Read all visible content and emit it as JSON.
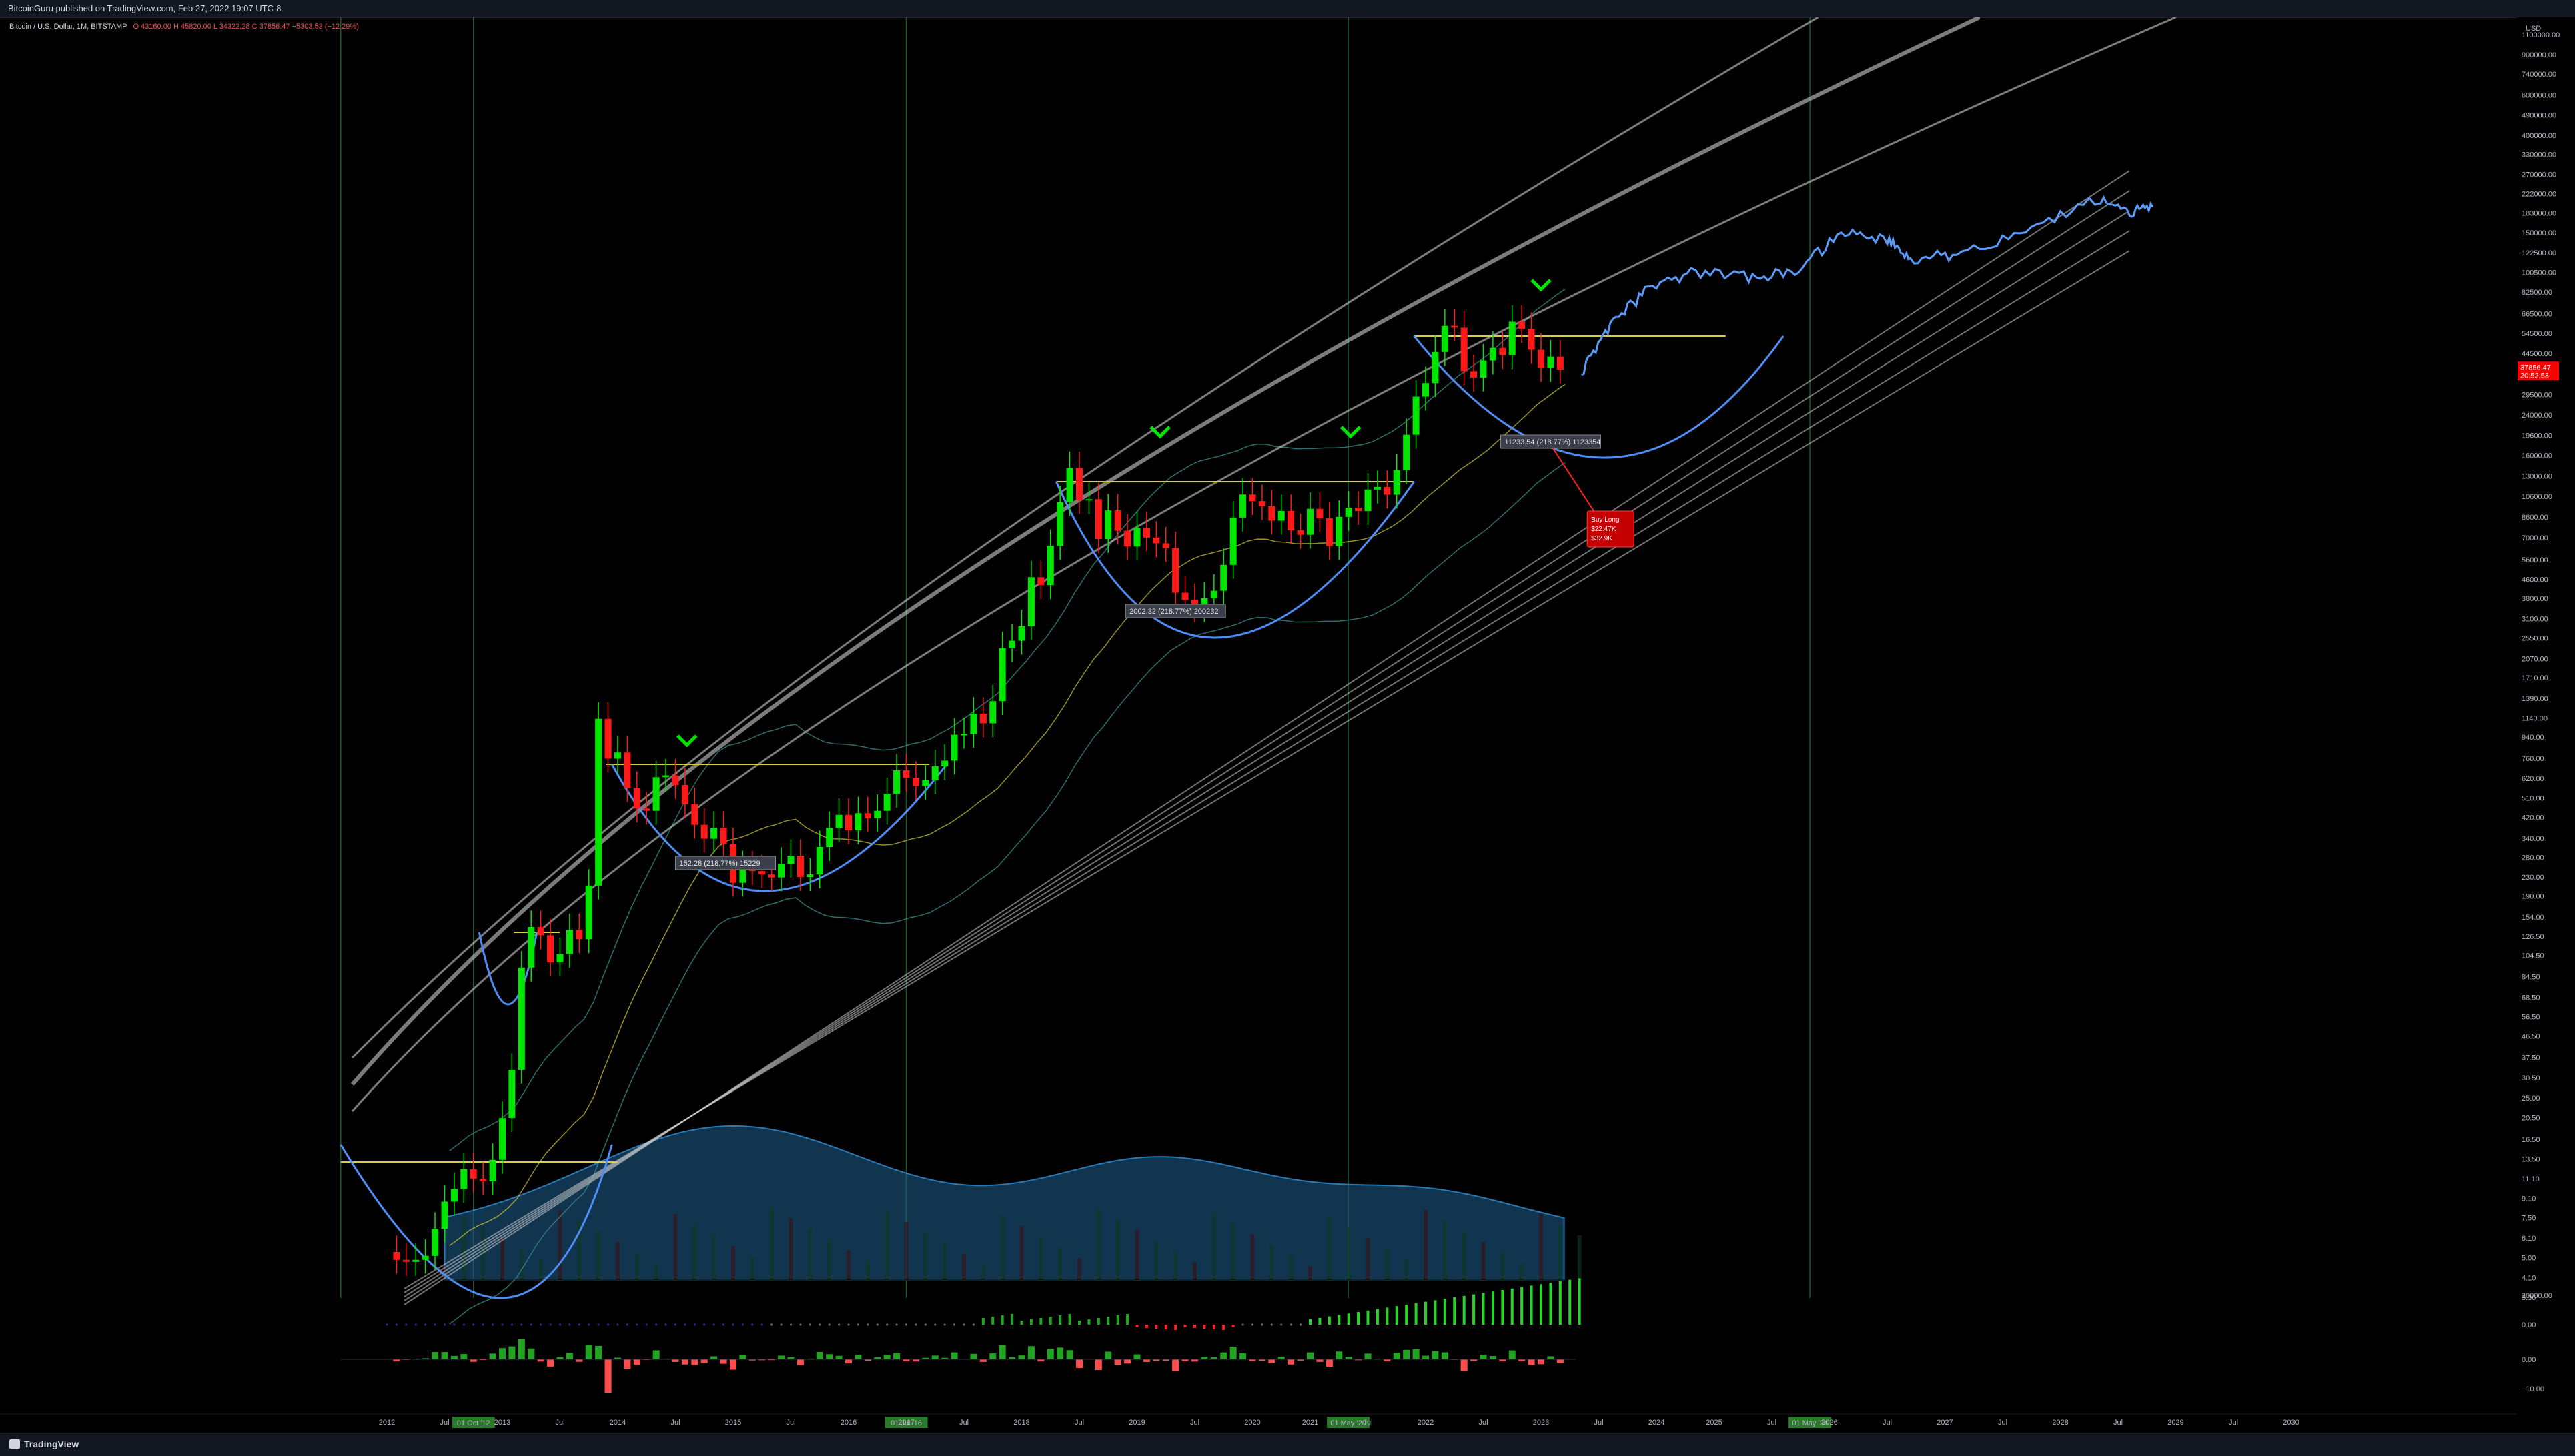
{
  "header": {
    "published": "BitcoinGuru published on TradingView.com, Feb 27, 2022 19:07 UTC-8",
    "symbol": "Bitcoin / U.S. Dollar, 1M, BITSTAMP",
    "ohlc": "O 43160.00 H 45820.00 L 34322.28 C 37856.47 −5303.53 (−12.29%)"
  },
  "footer": {
    "brand": "TradingView"
  },
  "price_badge": {
    "value": "37856.47",
    "timer": "20:52:53",
    "color": "#ff0000"
  },
  "annotations": {
    "measure_1": "152.28 (218.77%) 15229",
    "measure_2": "2002.32 (218.77%) 200232",
    "measure_3": "11233.54 (218.77%) 1123354",
    "buy_box": [
      "Buy Long",
      "$22.47K",
      "$32.9K"
    ]
  },
  "colors": {
    "bull": "#00e600",
    "bear": "#ff1a1a",
    "cup": "#4f8ef7",
    "projection": "#5b9bf8",
    "handle": "#d8cf3a",
    "channel": "#cfcfcf",
    "bollinger": "#3a8a8a",
    "volume_fill": "#1f5f8f"
  },
  "chart_data": {
    "type": "candlestick",
    "title": "Bitcoin / U.S. Dollar, 1M, BITSTAMP",
    "scale": "log",
    "y_axis_unit": "USD",
    "y_ticks": [
      1100000,
      900000,
      740000,
      600000,
      490000,
      400000,
      330000,
      270000,
      222000,
      183000,
      150000,
      122500,
      100500,
      82500,
      66500,
      54500,
      44500,
      36500,
      29500,
      24000,
      19600,
      16000,
      13000,
      10600,
      8600,
      7000,
      5600,
      4600,
      3800,
      3100,
      2550,
      2070,
      1710,
      1390,
      1140,
      940,
      760,
      620,
      510,
      420,
      340,
      280,
      230,
      190,
      154,
      126.5,
      104.5,
      84.5,
      68.5,
      56.5,
      46.5,
      37.5,
      30.5,
      25,
      20.5,
      16.5,
      13.5,
      11.1,
      9.1,
      7.5,
      6.1,
      5.0,
      4.1,
      3.36
    ],
    "y_tick_labels": [
      "1100000.00",
      "900000.00",
      "740000.00",
      "600000.00",
      "490000.00",
      "400000.00",
      "330000.00",
      "270000.00",
      "222000.00",
      "183000.00",
      "150000.00",
      "122500.00",
      "100500.00",
      "82500.00",
      "66500.00",
      "54500.00",
      "44500.00",
      "36500.00",
      "29500.00",
      "24000.00",
      "19600.00",
      "16000.00",
      "13000.00",
      "10600.00",
      "8600.00",
      "7000.00",
      "5600.00",
      "4600.00",
      "3800.00",
      "3100.00",
      "2550.00",
      "2070.00",
      "1710.00",
      "1390.00",
      "1140.00",
      "940.00",
      "760.00",
      "620.00",
      "510.00",
      "420.00",
      "340.00",
      "280.00",
      "230.00",
      "190.00",
      "154.00",
      "126.50",
      "104.50",
      "84.50",
      "68.50",
      "56.50",
      "46.50",
      "37.50",
      "30.50",
      "25.00",
      "20.50",
      "16.50",
      "13.50",
      "11.10",
      "9.10",
      "7.50",
      "6.10",
      "5.00",
      "4.10",
      "3.36"
    ],
    "osc_ticks": [
      "20000.00",
      "0.00"
    ],
    "hist_ticks": [
      "0.00",
      "−10.00"
    ],
    "x_labels": [
      "2012",
      "Jul",
      "01 Oct '12",
      "2013",
      "Jul",
      "2014",
      "Jul",
      "2015",
      "Jul",
      "2016",
      "01 Jul '16",
      "2017",
      "Jul",
      "2018",
      "Jul",
      "2019",
      "Jul",
      "2020",
      "01 May '20",
      "2021",
      "Jul",
      "2022",
      "Jul",
      "2023",
      "Jul",
      "2024",
      "01 May '24",
      "2025",
      "Jul",
      "2026",
      "Jul",
      "2027",
      "Jul",
      "2028",
      "Jul",
      "2029",
      "Jul",
      "2030"
    ],
    "x_start": 2012.0,
    "x_step_years": 0.5,
    "halving_dates": [
      "01 Oct '12",
      "01 Jul '16",
      "01 May '20",
      "01 May '24"
    ],
    "monthly_close": [
      5.3,
      4.9,
      4.8,
      4.9,
      5.1,
      6.7,
      8.8,
      10.0,
      12.2,
      11.1,
      10.8,
      13.4,
      20.4,
      33.1,
      92.5,
      139.0,
      128.0,
      97.5,
      106.0,
      135.0,
      123.0,
      211.0,
      1130.0,
      757.0,
      805.0,
      563.0,
      458.0,
      448.0,
      628.0,
      640.0,
      581.0,
      479.0,
      389.0,
      338.0,
      378.0,
      320.0,
      217.0,
      254.0,
      244.0,
      236.0,
      229.0,
      263.0,
      285.0,
      230.0,
      236.0,
      311.0,
      377.0,
      430.0,
      368.0,
      437.0,
      416.0,
      448.0,
      531.0,
      673.0,
      624.0,
      575.0,
      609.0,
      701.0,
      742.0,
      963.0,
      970.0,
      1190.0,
      1080.0,
      1350.0,
      2300.0,
      2480.0,
      2870.0,
      4700.0,
      4340.0,
      6440.0,
      10000.0,
      14100.0,
      10200.0,
      10300.0,
      6900.0,
      9200.0,
      7500.0,
      6400.0,
      7720.0,
      7000.0,
      6610.0,
      6300.0,
      4020.0,
      3740.0,
      3440.0,
      3800.0,
      4100.0,
      5320.0,
      8560.0,
      10800.0,
      10100.0,
      9600.0,
      8300.0,
      9150.0,
      7540.0,
      7200.0,
      9350.0,
      8500.0,
      6430.0,
      8620.0,
      9450.0,
      9140.0,
      11350.0,
      11650.0,
      10780.0,
      13800.0,
      19700.0,
      28900.0,
      33100.0,
      45200.0,
      58800.0,
      57700.0,
      37300.0,
      35000.0,
      41500.0,
      47100.0,
      43800.0,
      61300.0,
      57000.0,
      46200.0,
      38500.0,
      43160.0,
      37856.47
    ],
    "projection_note": "Hand-drawn projected path (blue) from 2022 to 2027",
    "cup_labels": [
      "152.28 (218.77%) 15229",
      "2002.32 (218.77%) 200232",
      "11233.54 (218.77%) 1123354"
    ]
  }
}
